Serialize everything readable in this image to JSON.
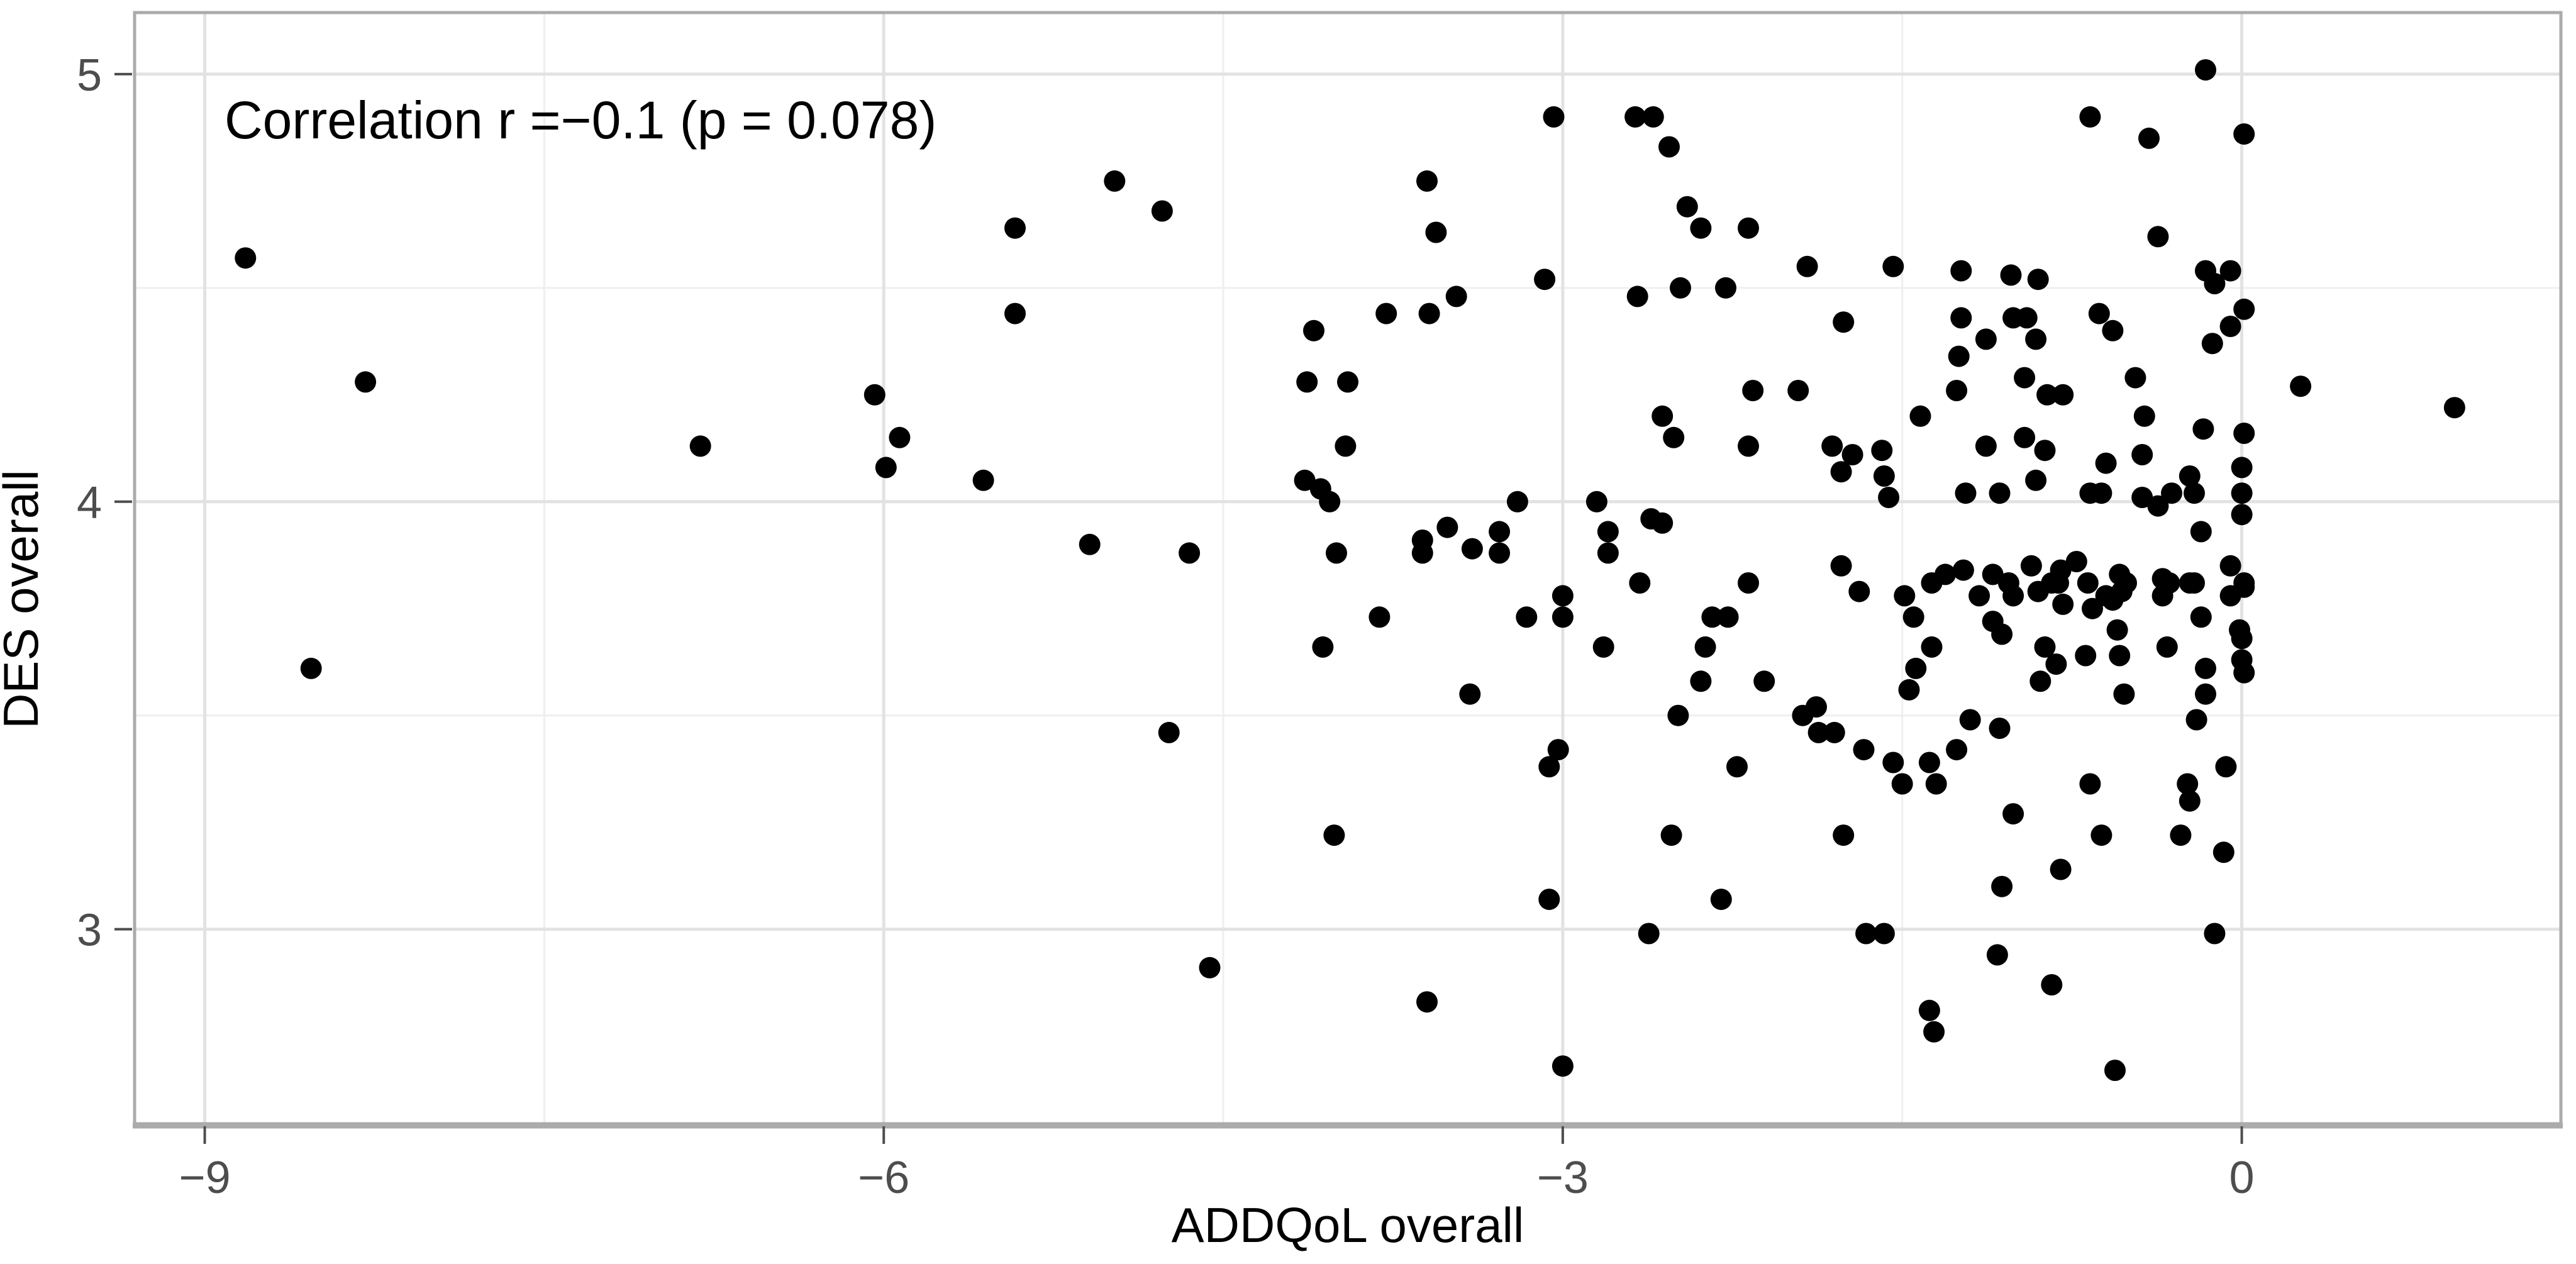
{
  "chart_data": {
    "type": "scatter",
    "annotation": "Correlation r =−0.1 (p = 0.078)",
    "xlabel": "ADDQoL overall",
    "ylabel": "DES overall",
    "x_ticks": [
      -9,
      -6,
      -3,
      0
    ],
    "x_tick_labels": [
      "−9",
      "−6",
      "−3",
      "0"
    ],
    "x_minor_ticks": [
      -7.5,
      -4.5,
      -1.5
    ],
    "y_ticks": [
      3,
      4,
      5
    ],
    "y_tick_labels": [
      "3",
      "4",
      "5"
    ],
    "y_minor_ticks": [
      3.5,
      4.5
    ],
    "xlim": [
      -9.31,
      1.41
    ],
    "ylim": [
      2.545,
      5.144
    ],
    "grid": "major+minor",
    "legend": "none",
    "colors": {
      "point": "#000000",
      "grid_major": "#e2e2e2",
      "grid_minor": "#efefef",
      "panel_border": "#ababab",
      "tick_mark": "#4d4d4d",
      "tick_text": "#4d4d4d",
      "background": "#ffffff"
    },
    "points": [
      [
        -8.82,
        4.57
      ],
      [
        -8.29,
        4.28
      ],
      [
        -6.81,
        4.13
      ],
      [
        -8.53,
        3.61
      ],
      [
        -4.98,
        4.75
      ],
      [
        -4.77,
        4.68
      ],
      [
        -5.42,
        4.64
      ],
      [
        -5.42,
        4.44
      ],
      [
        -6.04,
        4.25
      ],
      [
        -4.1,
        4.4
      ],
      [
        -4.13,
        4.28
      ],
      [
        -3.95,
        4.28
      ],
      [
        -5.93,
        4.15
      ],
      [
        -5.99,
        4.08
      ],
      [
        -3.96,
        4.13
      ],
      [
        -5.56,
        4.05
      ],
      [
        -4.14,
        4.05
      ],
      [
        -4.07,
        4.03
      ],
      [
        -4.03,
        4.0
      ],
      [
        -5.09,
        3.9
      ],
      [
        -4.65,
        3.88
      ],
      [
        -4.0,
        3.88
      ],
      [
        -3.04,
        4.9
      ],
      [
        -2.68,
        4.9
      ],
      [
        -2.6,
        4.9
      ],
      [
        -2.53,
        4.83
      ],
      [
        -3.6,
        4.75
      ],
      [
        -2.45,
        4.69
      ],
      [
        -2.39,
        4.64
      ],
      [
        -2.18,
        4.64
      ],
      [
        -3.56,
        4.63
      ],
      [
        -1.92,
        4.55
      ],
      [
        -1.54,
        4.55
      ],
      [
        -3.08,
        4.52
      ],
      [
        -2.48,
        4.5
      ],
      [
        -2.28,
        4.5
      ],
      [
        -3.78,
        4.44
      ],
      [
        -3.59,
        4.44
      ],
      [
        -3.47,
        4.48
      ],
      [
        -2.67,
        4.48
      ],
      [
        -1.76,
        4.42
      ],
      [
        -2.16,
        4.26
      ],
      [
        -1.96,
        4.26
      ],
      [
        -2.56,
        4.2
      ],
      [
        -2.51,
        4.15
      ],
      [
        -2.18,
        4.13
      ],
      [
        -1.81,
        4.13
      ],
      [
        -1.72,
        4.11
      ],
      [
        -1.59,
        4.12
      ],
      [
        -1.77,
        4.07
      ],
      [
        -1.58,
        4.06
      ],
      [
        -1.56,
        4.01
      ],
      [
        -3.2,
        4.0
      ],
      [
        -2.85,
        4.0
      ],
      [
        -2.56,
        3.95
      ],
      [
        -3.51,
        3.94
      ],
      [
        -3.62,
        3.91
      ],
      [
        -3.62,
        3.88
      ],
      [
        -3.4,
        3.89
      ],
      [
        -3.28,
        3.93
      ],
      [
        -3.28,
        3.88
      ],
      [
        -2.8,
        3.93
      ],
      [
        -2.8,
        3.88
      ],
      [
        -2.61,
        3.96
      ],
      [
        -1.42,
        4.2
      ],
      [
        -0.16,
        5.01
      ],
      [
        -0.67,
        4.9
      ],
      [
        -0.41,
        4.85
      ],
      [
        0.01,
        4.86
      ],
      [
        -0.37,
        4.62
      ],
      [
        -0.16,
        4.54
      ],
      [
        -0.05,
        4.54
      ],
      [
        -0.12,
        4.51
      ],
      [
        -1.02,
        4.53
      ],
      [
        -0.9,
        4.52
      ],
      [
        -1.24,
        4.54
      ],
      [
        0.01,
        4.45
      ],
      [
        -0.05,
        4.41
      ],
      [
        -1.01,
        4.43
      ],
      [
        -0.95,
        4.43
      ],
      [
        -1.13,
        4.38
      ],
      [
        -0.91,
        4.38
      ],
      [
        -1.24,
        4.43
      ],
      [
        -0.63,
        4.44
      ],
      [
        -0.57,
        4.4
      ],
      [
        -1.25,
        4.34
      ],
      [
        -1.26,
        4.26
      ],
      [
        -0.13,
        4.37
      ],
      [
        -0.96,
        4.29
      ],
      [
        -0.86,
        4.25
      ],
      [
        -0.79,
        4.25
      ],
      [
        -0.47,
        4.29
      ],
      [
        0.26,
        4.27
      ],
      [
        0.94,
        4.22
      ],
      [
        -0.43,
        4.2
      ],
      [
        -0.96,
        4.15
      ],
      [
        -1.13,
        4.13
      ],
      [
        -0.87,
        4.12
      ],
      [
        -0.17,
        4.17
      ],
      [
        0.01,
        4.16
      ],
      [
        -0.44,
        4.11
      ],
      [
        -0.6,
        4.09
      ],
      [
        -0.91,
        4.05
      ],
      [
        -1.22,
        4.02
      ],
      [
        -1.07,
        4.02
      ],
      [
        -0.67,
        4.02
      ],
      [
        -0.62,
        4.02
      ],
      [
        -0.44,
        4.01
      ],
      [
        -0.37,
        3.99
      ],
      [
        -0.31,
        4.02
      ],
      [
        -0.23,
        4.06
      ],
      [
        -0.21,
        4.02
      ],
      [
        0.0,
        4.08
      ],
      [
        0.0,
        4.02
      ],
      [
        0.0,
        3.97
      ],
      [
        -0.18,
        3.93
      ],
      [
        -4.06,
        3.66
      ],
      [
        -4.74,
        3.46
      ],
      [
        -4.01,
        3.22
      ],
      [
        -4.56,
        2.91
      ],
      [
        -3.81,
        3.73
      ],
      [
        -3.16,
        3.73
      ],
      [
        -3.0,
        3.78
      ],
      [
        -3.0,
        3.73
      ],
      [
        -2.66,
        3.81
      ],
      [
        -2.82,
        3.66
      ],
      [
        -2.18,
        3.81
      ],
      [
        -2.34,
        3.73
      ],
      [
        -2.27,
        3.73
      ],
      [
        -2.37,
        3.66
      ],
      [
        -2.39,
        3.58
      ],
      [
        -2.11,
        3.58
      ],
      [
        -3.41,
        3.55
      ],
      [
        -2.49,
        3.5
      ],
      [
        -1.94,
        3.5
      ],
      [
        -1.88,
        3.52
      ],
      [
        -1.77,
        3.85
      ],
      [
        -1.69,
        3.79
      ],
      [
        -1.49,
        3.78
      ],
      [
        -1.45,
        3.73
      ],
      [
        -1.37,
        3.81
      ],
      [
        -1.31,
        3.83
      ],
      [
        -1.37,
        3.66
      ],
      [
        -1.44,
        3.61
      ],
      [
        -1.47,
        3.56
      ],
      [
        -1.87,
        3.46
      ],
      [
        -1.8,
        3.46
      ],
      [
        -1.67,
        3.42
      ],
      [
        -1.54,
        3.39
      ],
      [
        -1.5,
        3.34
      ],
      [
        -1.38,
        3.39
      ],
      [
        -1.35,
        3.34
      ],
      [
        -3.02,
        3.42
      ],
      [
        -3.06,
        3.38
      ],
      [
        -2.23,
        3.38
      ],
      [
        -2.52,
        3.22
      ],
      [
        -1.76,
        3.22
      ],
      [
        -3.06,
        3.07
      ],
      [
        -2.3,
        3.07
      ],
      [
        -2.62,
        2.99
      ],
      [
        -1.66,
        2.99
      ],
      [
        -1.58,
        2.99
      ],
      [
        -3.6,
        2.83
      ],
      [
        -1.38,
        2.81
      ],
      [
        -1.36,
        2.76
      ],
      [
        -3.0,
        2.68
      ],
      [
        -1.23,
        3.84
      ],
      [
        -1.1,
        3.83
      ],
      [
        -1.03,
        3.81
      ],
      [
        -0.93,
        3.85
      ],
      [
        -0.84,
        3.81
      ],
      [
        -0.8,
        3.84
      ],
      [
        -0.73,
        3.86
      ],
      [
        -0.68,
        3.81
      ],
      [
        -0.54,
        3.83
      ],
      [
        -0.53,
        3.79
      ],
      [
        -0.35,
        3.82
      ],
      [
        -0.23,
        3.81
      ],
      [
        -0.05,
        3.85
      ],
      [
        0.01,
        3.8
      ],
      [
        -1.16,
        3.78
      ],
      [
        -1.1,
        3.72
      ],
      [
        -1.06,
        3.69
      ],
      [
        -1.01,
        3.78
      ],
      [
        -0.9,
        3.79
      ],
      [
        -0.81,
        3.81
      ],
      [
        -0.79,
        3.76
      ],
      [
        -0.87,
        3.66
      ],
      [
        -0.82,
        3.62
      ],
      [
        -0.89,
        3.58
      ],
      [
        -0.69,
        3.64
      ],
      [
        -0.66,
        3.75
      ],
      [
        -0.6,
        3.78
      ],
      [
        -0.57,
        3.77
      ],
      [
        -0.55,
        3.7
      ],
      [
        -0.54,
        3.64
      ],
      [
        -0.51,
        3.81
      ],
      [
        -0.35,
        3.78
      ],
      [
        -0.32,
        3.81
      ],
      [
        -0.33,
        3.66
      ],
      [
        -0.21,
        3.81
      ],
      [
        -0.18,
        3.73
      ],
      [
        -0.16,
        3.61
      ],
      [
        -0.16,
        3.55
      ],
      [
        -0.05,
        3.78
      ],
      [
        0.01,
        3.81
      ],
      [
        -0.01,
        3.7
      ],
      [
        0.0,
        3.68
      ],
      [
        0.0,
        3.63
      ],
      [
        0.01,
        3.6
      ],
      [
        -0.52,
        3.55
      ],
      [
        -0.2,
        3.49
      ],
      [
        -1.2,
        3.49
      ],
      [
        -1.07,
        3.47
      ],
      [
        -1.26,
        3.42
      ],
      [
        -0.67,
        3.34
      ],
      [
        -0.24,
        3.34
      ],
      [
        -0.23,
        3.3
      ],
      [
        -0.07,
        3.38
      ],
      [
        -1.01,
        3.27
      ],
      [
        -0.62,
        3.22
      ],
      [
        -0.27,
        3.22
      ],
      [
        -0.08,
        3.18
      ],
      [
        -0.8,
        3.14
      ],
      [
        -1.06,
        3.1
      ],
      [
        -0.12,
        2.99
      ],
      [
        -1.08,
        2.94
      ],
      [
        -0.84,
        2.87
      ],
      [
        -0.56,
        2.67
      ]
    ]
  }
}
